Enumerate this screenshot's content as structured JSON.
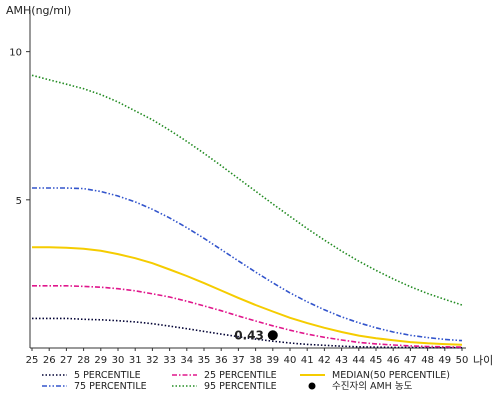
{
  "chart_data": {
    "type": "line",
    "title": "",
    "ylabel": "AMH(ng/ml)",
    "xlabel": "나이",
    "x": [
      25,
      26,
      27,
      28,
      29,
      30,
      31,
      32,
      33,
      34,
      35,
      36,
      37,
      38,
      39,
      40,
      41,
      42,
      43,
      44,
      45,
      46,
      47,
      48,
      49,
      50
    ],
    "xlim": [
      25,
      50
    ],
    "ylim": [
      0,
      11
    ],
    "yticks": [
      5,
      10
    ],
    "grid": false,
    "legend_position": "bottom",
    "series": [
      {
        "name": "5 PERCENTILE",
        "color": "#000033",
        "dash": "dotted",
        "values": [
          1.0,
          1.0,
          1.0,
          0.97,
          0.95,
          0.92,
          0.88,
          0.82,
          0.74,
          0.65,
          0.56,
          0.47,
          0.38,
          0.3,
          0.23,
          0.17,
          0.12,
          0.09,
          0.06,
          0.04,
          0.03,
          0.02,
          0.02,
          0.01,
          0.01,
          0.01
        ]
      },
      {
        "name": "25 PERCENTILE",
        "color": "#e0168c",
        "dash": "dashdot",
        "values": [
          2.1,
          2.1,
          2.1,
          2.08,
          2.05,
          2.0,
          1.93,
          1.83,
          1.72,
          1.58,
          1.42,
          1.26,
          1.08,
          0.91,
          0.75,
          0.6,
          0.47,
          0.36,
          0.27,
          0.19,
          0.14,
          0.1,
          0.07,
          0.05,
          0.04,
          0.03
        ]
      },
      {
        "name": "MEDIAN(50 PERCENTILE)",
        "color": "#f5cc00",
        "dash": "solid",
        "values": [
          3.4,
          3.4,
          3.38,
          3.35,
          3.28,
          3.17,
          3.03,
          2.86,
          2.65,
          2.43,
          2.19,
          1.94,
          1.69,
          1.45,
          1.23,
          1.02,
          0.84,
          0.68,
          0.54,
          0.42,
          0.33,
          0.26,
          0.2,
          0.16,
          0.13,
          0.11
        ]
      },
      {
        "name": "75 PERCENTILE",
        "color": "#3355cc",
        "dash": "dashdotdot",
        "values": [
          5.4,
          5.4,
          5.4,
          5.38,
          5.28,
          5.13,
          4.93,
          4.68,
          4.39,
          4.06,
          3.7,
          3.32,
          2.94,
          2.56,
          2.2,
          1.86,
          1.56,
          1.29,
          1.05,
          0.85,
          0.68,
          0.54,
          0.43,
          0.35,
          0.29,
          0.25
        ]
      },
      {
        "name": "95 PERCENTILE",
        "color": "#228b22",
        "dash": "dotted",
        "values": [
          9.2,
          9.05,
          8.9,
          8.75,
          8.55,
          8.3,
          8.0,
          7.7,
          7.35,
          6.97,
          6.57,
          6.15,
          5.72,
          5.29,
          4.86,
          4.44,
          4.03,
          3.64,
          3.27,
          2.93,
          2.62,
          2.33,
          2.07,
          1.84,
          1.64,
          1.45
        ]
      },
      {
        "name": "수진자의 AMH 농도",
        "type": "scatter",
        "color": "#000000",
        "points": [
          {
            "x": 39,
            "y": 0.43,
            "label": "0.43"
          }
        ]
      }
    ]
  }
}
